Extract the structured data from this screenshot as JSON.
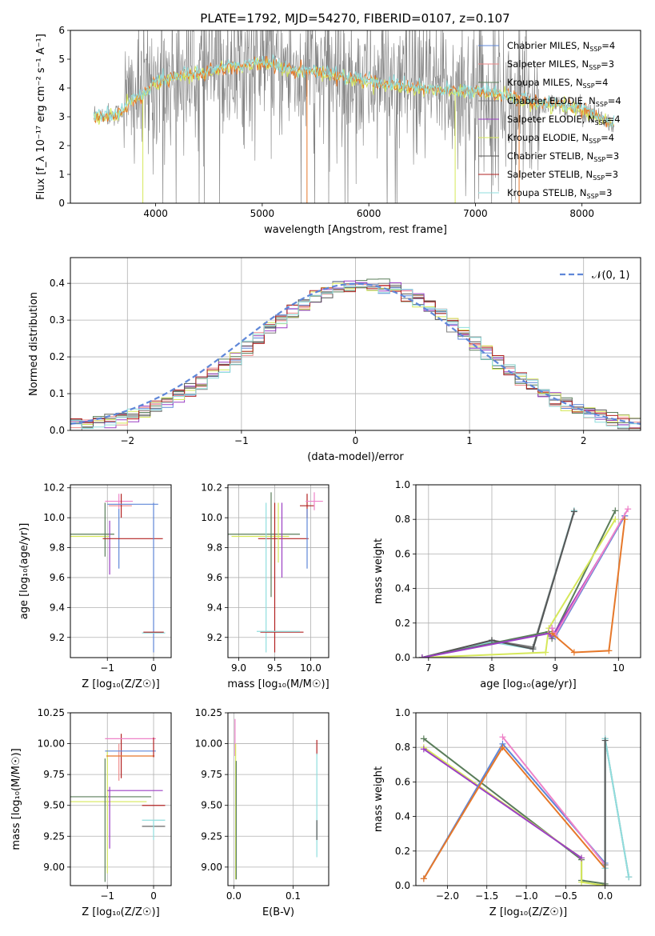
{
  "figure_title": "PLATE=1792, MJD=54270, FIBERID=0107, z=0.107",
  "colors": {
    "Chabrier MILES": "#5f87d8",
    "Salpeter MILES": "#ee8a8a",
    "Kroupa MILES": "#5a7d5a",
    "Chabrier ELODIE": "#7f7f7f",
    "Salpeter ELODIE": "#9b3fc4",
    "Kroupa ELODIE": "#d6e85a",
    "Chabrier STELIB": "#555555",
    "Salpeter STELIB": "#b22222",
    "Kroupa STELIB": "#8fdede",
    "data": "#808080",
    "orange": "#e6782a",
    "pink": "#ee82c8",
    "normal": "#5f87d8"
  },
  "chart_data": [
    {
      "id": "spectrum",
      "type": "line",
      "title": "PLATE=1792, MJD=54270, FIBERID=0107, z=0.107",
      "xlabel": "wavelength [Angstrom, rest frame]",
      "ylabel": "Flux [f_λ 10⁻¹⁷ erg cm⁻² s⁻¹ A⁻¹]",
      "xlim": [
        3200,
        8550
      ],
      "ylim": [
        0,
        6
      ],
      "xticks": [
        4000,
        5000,
        6000,
        7000,
        8000
      ],
      "yticks": [
        0,
        1,
        2,
        3,
        4,
        5,
        6
      ],
      "legend_position": "right",
      "legend": [
        {
          "label": "Chabrier MILES, N",
          "sub": "SSP",
          "val": "=4",
          "color": "#5f87d8"
        },
        {
          "label": "Salpeter MILES, N",
          "sub": "SSP",
          "val": "=3",
          "color": "#ee8a8a"
        },
        {
          "label": "Kroupa MILES, N",
          "sub": "SSP",
          "val": "=4",
          "color": "#5a7d5a"
        },
        {
          "label": "Chabrier ELODIE, N",
          "sub": "SSP",
          "val": "=4",
          "color": "#7f7f7f"
        },
        {
          "label": "Salpeter ELODIE, N",
          "sub": "SSP",
          "val": "=4",
          "color": "#9b3fc4"
        },
        {
          "label": "Kroupa ELODIE, N",
          "sub": "SSP",
          "val": "=4",
          "color": "#d6e85a"
        },
        {
          "label": "Chabrier STELIB, N",
          "sub": "SSP",
          "val": "=3",
          "color": "#555555"
        },
        {
          "label": "Salpeter STELIB, N",
          "sub": "SSP",
          "val": "=3",
          "color": "#b22222"
        },
        {
          "label": "Kroupa STELIB, N",
          "sub": "SSP",
          "val": "=3",
          "color": "#8fdede"
        }
      ],
      "continuum_knots": [
        [
          3420,
          3.1
        ],
        [
          3500,
          3.05
        ],
        [
          3650,
          3.1
        ],
        [
          3780,
          3.6
        ],
        [
          3900,
          3.8
        ],
        [
          4000,
          4.2
        ],
        [
          4200,
          4.4
        ],
        [
          4400,
          4.5
        ],
        [
          4600,
          4.7
        ],
        [
          4800,
          4.75
        ],
        [
          5000,
          4.9
        ],
        [
          5300,
          4.6
        ],
        [
          5600,
          4.5
        ],
        [
          5900,
          4.3
        ],
        [
          6200,
          4.1
        ],
        [
          6500,
          4.0
        ],
        [
          6800,
          3.9
        ],
        [
          7000,
          3.9
        ],
        [
          7300,
          3.7
        ],
        [
          7600,
          3.45
        ],
        [
          8000,
          3.3
        ],
        [
          8300,
          2.7
        ]
      ],
      "grid": false
    },
    {
      "id": "residuals",
      "type": "line",
      "xlabel": "(data-model)/error",
      "ylabel": "Normed distribution",
      "xlim": [
        -2.5,
        2.5
      ],
      "ylim": [
        0,
        0.47
      ],
      "xticks": [
        -2,
        -1,
        0,
        1,
        2
      ],
      "yticks": [
        0.0,
        0.1,
        0.2,
        0.3,
        0.4
      ],
      "grid": true,
      "legend_position": "top-right",
      "legend_label": "𝒩(0, 1)",
      "normal_mu": 0,
      "normal_sigma": 1
    },
    {
      "id": "age-vs-Z",
      "type": "scatter",
      "xlabel": "Z [log₁₀(Z/Z☉)]",
      "ylabel": "age  [log₁₀(age/yr)]",
      "xlim": [
        -1.8,
        0.38
      ],
      "ylim": [
        9.065,
        10.22
      ],
      "xticks": [
        -1,
        0
      ],
      "yticks": [
        9.2,
        9.4,
        9.6,
        9.8,
        10.0,
        10.2
      ],
      "grid": true,
      "crosses": [
        {
          "x": -1.5,
          "y": 9.89,
          "xerr": 0.65,
          "yerr": 0.0,
          "color": "#5a7d5a"
        },
        {
          "x": -1.5,
          "y": 9.875,
          "xerr": 0.55,
          "yerr": 0.0,
          "color": "#d6e85a"
        },
        {
          "x": -1.05,
          "y": 9.92,
          "xerr": 0.0,
          "yerr": 0.18,
          "color": "#5a7d5a"
        },
        {
          "x": -0.95,
          "y": 9.8,
          "xerr": 0.0,
          "yerr": 0.18,
          "color": "#9b3fc4"
        },
        {
          "x": -0.75,
          "y": 9.86,
          "xerr": 0.0,
          "yerr": 0.2,
          "color": "#5f87d8"
        },
        {
          "x": -0.75,
          "y": 10.11,
          "xerr": 0.3,
          "yerr": 0.05,
          "color": "#ee82c8"
        },
        {
          "x": -0.72,
          "y": 10.08,
          "xerr": 0.25,
          "yerr": 0.0,
          "color": "#ee8a8a"
        },
        {
          "x": -0.7,
          "y": 10.08,
          "xerr": 0.0,
          "yerr": 0.08,
          "color": "#b22222"
        },
        {
          "x": -0.45,
          "y": 9.86,
          "xerr": 0.65,
          "yerr": 0.0,
          "color": "#b22222"
        },
        {
          "x": -0.45,
          "y": 10.09,
          "xerr": 0.55,
          "yerr": 0.0,
          "color": "#5f87d8"
        },
        {
          "x": 0.0,
          "y": 9.6,
          "xerr": 0.0,
          "yerr": 0.5,
          "color": "#5f87d8"
        },
        {
          "x": 0.0,
          "y": 9.23,
          "xerr": 0.25,
          "yerr": 0.0,
          "color": "#8fdede"
        },
        {
          "x": 0.0,
          "y": 9.235,
          "xerr": 0.22,
          "yerr": 0.0,
          "color": "#b22222"
        }
      ]
    },
    {
      "id": "age-vs-mass",
      "type": "scatter",
      "xlabel": "mass [log₁₀(M/M☉)]",
      "ylabel": "",
      "xlim": [
        8.85,
        10.25
      ],
      "ylim": [
        9.065,
        10.22
      ],
      "xticks": [
        9.0,
        9.5,
        10.0
      ],
      "yticks": [
        9.2,
        9.4,
        9.6,
        9.8,
        10.0,
        10.2
      ],
      "grid": true,
      "crosses": [
        {
          "x": 9.35,
          "y": 9.89,
          "xerr": 0.5,
          "yerr": 0.0,
          "color": "#5a7d5a"
        },
        {
          "x": 9.3,
          "y": 9.875,
          "xerr": 0.4,
          "yerr": 0.0,
          "color": "#d6e85a"
        },
        {
          "x": 9.62,
          "y": 9.86,
          "xerr": 0.35,
          "yerr": 0.0,
          "color": "#b22222"
        },
        {
          "x": 9.5,
          "y": 9.6,
          "xerr": 0.0,
          "yerr": 0.5,
          "color": "#b22222"
        },
        {
          "x": 9.45,
          "y": 9.82,
          "xerr": 0.0,
          "yerr": 0.35,
          "color": "#5a7d5a"
        },
        {
          "x": 9.6,
          "y": 9.85,
          "xerr": 0.0,
          "yerr": 0.25,
          "color": "#9b3fc4"
        },
        {
          "x": 9.55,
          "y": 9.9,
          "xerr": 0.0,
          "yerr": 0.2,
          "color": "#d6e85a"
        },
        {
          "x": 9.42,
          "y": 9.24,
          "xerr": 0.0,
          "yerr": 0.0,
          "color": "#8fdede"
        },
        {
          "x": 9.38,
          "y": 9.6,
          "xerr": 0.0,
          "yerr": 0.5,
          "color": "#8fdede"
        },
        {
          "x": 9.6,
          "y": 9.235,
          "xerr": 0.3,
          "yerr": 0.0,
          "color": "#b22222"
        },
        {
          "x": 9.55,
          "y": 9.24,
          "xerr": 0.3,
          "yerr": 0.0,
          "color": "#8fdede"
        },
        {
          "x": 9.95,
          "y": 10.08,
          "xerr": 0.1,
          "yerr": 0.08,
          "color": "#b22222"
        },
        {
          "x": 10.05,
          "y": 10.11,
          "xerr": 0.12,
          "yerr": 0.06,
          "color": "#ee82c8"
        },
        {
          "x": 9.95,
          "y": 9.86,
          "xerr": 0.0,
          "yerr": 0.2,
          "color": "#5f87d8"
        }
      ]
    },
    {
      "id": "mass-weight-vs-age",
      "type": "line",
      "xlabel": "age  [log₁₀(age/yr)]",
      "ylabel": "mass weight",
      "xlim": [
        6.8,
        10.35
      ],
      "ylim": [
        0.0,
        1.0
      ],
      "xticks": [
        7,
        8,
        9,
        10
      ],
      "yticks": [
        0.0,
        0.2,
        0.4,
        0.6,
        0.8,
        1.0
      ],
      "grid": true,
      "series": [
        {
          "color": "#7f7f7f",
          "x": [
            6.9,
            8.0,
            8.65,
            9.3
          ],
          "y": [
            0.0,
            0.1,
            0.06,
            0.85
          ]
        },
        {
          "color": "#8fdede",
          "x": [
            6.9,
            8.0,
            8.65,
            9.3
          ],
          "y": [
            0.0,
            0.09,
            0.05,
            0.85
          ]
        },
        {
          "color": "#555555",
          "x": [
            6.9,
            8.0,
            8.65,
            9.3
          ],
          "y": [
            0.0,
            0.1,
            0.05,
            0.845
          ]
        },
        {
          "color": "#5a7d5a",
          "x": [
            6.9,
            8.9,
            8.95,
            9.95
          ],
          "y": [
            0.0,
            0.15,
            0.11,
            0.85
          ]
        },
        {
          "color": "#d6e85a",
          "x": [
            6.9,
            8.85,
            8.9,
            9.95
          ],
          "y": [
            0.0,
            0.03,
            0.17,
            0.8
          ]
        },
        {
          "color": "#9b3fc4",
          "x": [
            6.9,
            8.9,
            8.95,
            10.1
          ],
          "y": [
            0.0,
            0.14,
            0.12,
            0.82
          ]
        },
        {
          "color": "#5f87d8",
          "x": [
            8.95,
            9.0,
            10.1
          ],
          "y": [
            0.17,
            0.12,
            0.82
          ]
        },
        {
          "color": "#ee82c8",
          "x": [
            8.95,
            9.0,
            10.15
          ],
          "y": [
            0.17,
            0.13,
            0.86
          ]
        },
        {
          "color": "#e6782a",
          "x": [
            8.95,
            9.3,
            9.85,
            10.1
          ],
          "y": [
            0.14,
            0.03,
            0.04,
            0.8
          ]
        }
      ]
    },
    {
      "id": "mass-vs-Z",
      "type": "scatter",
      "xlabel": "Z [log₁₀(Z/Z☉)]",
      "ylabel": "mass [log₁₀(M/M☉)]",
      "xlim": [
        -1.8,
        0.38
      ],
      "ylim": [
        8.85,
        10.25
      ],
      "xticks": [
        -1,
        0
      ],
      "yticks": [
        9.0,
        9.25,
        9.5,
        9.75,
        10.0,
        10.25
      ],
      "grid": true,
      "crosses": [
        {
          "x": -1.0,
          "y": 9.57,
          "xerr": 0.95,
          "yerr": 0.0,
          "color": "#5a7d5a"
        },
        {
          "x": -1.0,
          "y": 9.53,
          "xerr": 0.85,
          "yerr": 0.0,
          "color": "#d6e85a"
        },
        {
          "x": -1.05,
          "y": 9.38,
          "xerr": 0.0,
          "yerr": 0.5,
          "color": "#5a7d5a"
        },
        {
          "x": -1.0,
          "y": 9.45,
          "xerr": 0.0,
          "yerr": 0.5,
          "color": "#d6e85a"
        },
        {
          "x": -0.95,
          "y": 9.4,
          "xerr": 0.0,
          "yerr": 0.25,
          "color": "#9b3fc4"
        },
        {
          "x": -0.4,
          "y": 9.62,
          "xerr": 0.6,
          "yerr": 0.0,
          "color": "#9b3fc4"
        },
        {
          "x": -0.75,
          "y": 9.85,
          "xerr": 0.0,
          "yerr": 0.15,
          "color": "#ee8a8a"
        },
        {
          "x": -0.7,
          "y": 9.9,
          "xerr": 0.0,
          "yerr": 0.18,
          "color": "#b22222"
        },
        {
          "x": -0.5,
          "y": 10.04,
          "xerr": 0.55,
          "yerr": 0.0,
          "color": "#ee82c8"
        },
        {
          "x": -0.5,
          "y": 9.94,
          "xerr": 0.55,
          "yerr": 0.0,
          "color": "#5f87d8"
        },
        {
          "x": -0.5,
          "y": 9.9,
          "xerr": 0.52,
          "yerr": 0.0,
          "color": "#e6782a"
        },
        {
          "x": 0.0,
          "y": 9.97,
          "xerr": 0.0,
          "yerr": 0.08,
          "color": "#b22222"
        },
        {
          "x": 0.0,
          "y": 9.5,
          "xerr": 0.25,
          "yerr": 0.0,
          "color": "#b22222"
        },
        {
          "x": 0.0,
          "y": 9.33,
          "xerr": 0.25,
          "yerr": 0.0,
          "color": "#555555"
        },
        {
          "x": 0.0,
          "y": 9.38,
          "xerr": 0.25,
          "yerr": 0.0,
          "color": "#8fdede"
        },
        {
          "x": 0.0,
          "y": 9.3,
          "xerr": 0.0,
          "yerr": 0.08,
          "color": "#8fdede"
        }
      ]
    },
    {
      "id": "mass-vs-EBV",
      "type": "scatter",
      "xlabel": "E(B-V)",
      "ylabel": "",
      "xlim": [
        -0.01,
        0.16
      ],
      "ylim": [
        8.85,
        10.25
      ],
      "xticks": [
        0.0,
        0.1
      ],
      "yticks": [
        9.0,
        9.25,
        9.5,
        9.75,
        10.0,
        10.25
      ],
      "grid": true,
      "crosses": [
        {
          "x": 0.002,
          "y": 10.05,
          "xerr": 0.0,
          "yerr": 0.15,
          "color": "#ee82c8"
        },
        {
          "x": 0.003,
          "y": 9.45,
          "xerr": 0.0,
          "yerr": 0.55,
          "color": "#d6e85a"
        },
        {
          "x": 0.004,
          "y": 9.38,
          "xerr": 0.0,
          "yerr": 0.48,
          "color": "#5a7d5a"
        },
        {
          "x": 0.14,
          "y": 9.97,
          "xerr": 0.0,
          "yerr": 0.06,
          "color": "#b22222"
        },
        {
          "x": 0.14,
          "y": 9.5,
          "xerr": 0.0,
          "yerr": 0.42,
          "color": "#8fdede"
        },
        {
          "x": 0.14,
          "y": 9.3,
          "xerr": 0.0,
          "yerr": 0.08,
          "color": "#555555"
        }
      ]
    },
    {
      "id": "mass-weight-vs-Z",
      "type": "line",
      "xlabel": "Z [log₁₀(Z/Z☉)]",
      "ylabel": "mass weight",
      "xlim": [
        -2.4,
        0.45
      ],
      "ylim": [
        0.0,
        1.0
      ],
      "xticks": [
        -2.0,
        -1.5,
        -1.0,
        -0.5,
        0.0
      ],
      "yticks": [
        0.0,
        0.2,
        0.4,
        0.6,
        0.8,
        1.0
      ],
      "grid": true,
      "series": [
        {
          "color": "#5a7d5a",
          "x": [
            -2.3,
            -0.3,
            -0.3,
            0.0
          ],
          "y": [
            0.85,
            0.15,
            0.03,
            0.01
          ]
        },
        {
          "color": "#d6e85a",
          "x": [
            -2.3,
            -0.3,
            -0.3,
            0.0
          ],
          "y": [
            0.8,
            0.16,
            0.02,
            0.0
          ]
        },
        {
          "color": "#9b3fc4",
          "x": [
            -2.3,
            -0.3
          ],
          "y": [
            0.79,
            0.16
          ]
        },
        {
          "color": "#5f87d8",
          "x": [
            -2.3,
            -1.3,
            0.0
          ],
          "y": [
            0.04,
            0.82,
            0.13
          ]
        },
        {
          "color": "#ee82c8",
          "x": [
            -1.3,
            0.0
          ],
          "y": [
            0.86,
            0.12
          ]
        },
        {
          "color": "#e6782a",
          "x": [
            -2.3,
            -1.3,
            0.0
          ],
          "y": [
            0.04,
            0.8,
            0.1
          ]
        },
        {
          "color": "#7f7f7f",
          "x": [
            0.0,
            0.0,
            0.3
          ],
          "y": [
            0.12,
            0.85,
            0.05
          ]
        },
        {
          "color": "#8fdede",
          "x": [
            0.0,
            0.0,
            0.3
          ],
          "y": [
            0.1,
            0.85,
            0.05
          ]
        },
        {
          "color": "#555555",
          "x": [
            0.0,
            0.0
          ],
          "y": [
            0.0,
            0.84
          ]
        }
      ]
    }
  ]
}
